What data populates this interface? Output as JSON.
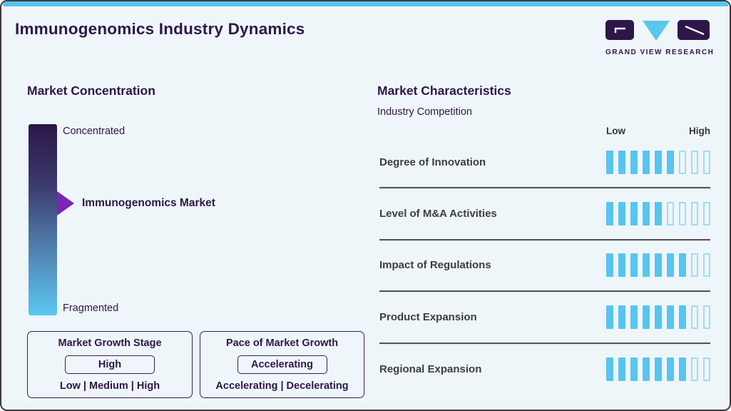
{
  "page_title": "Immunogenomics Industry Dynamics",
  "brand": {
    "name": "GRAND VIEW RESEARCH"
  },
  "colors": {
    "background": "#eff6fa",
    "accent_blue": "#57c5f0",
    "accent_light_blue": "#9edcf6",
    "dark_purple": "#2d1748",
    "arrow_purple": "#7c25b8",
    "gradient_top": "#2b1747",
    "gradient_bottom": "#5bc7f1"
  },
  "market_concentration": {
    "heading": "Market Concentration",
    "scale_top_label": "Concentrated",
    "scale_bottom_label": "Fragmented",
    "marker_label": "Immunogenomics Market",
    "marker_position_pct_from_top": 41.5,
    "growth_stage_box": {
      "title": "Market Growth Stage",
      "value": "High",
      "options": "Low | Medium | High"
    },
    "growth_pace_box": {
      "title": "Pace of Market Growth",
      "value": "Accelerating",
      "options": "Accelerating | Decelerating"
    }
  },
  "market_characteristics": {
    "heading": "Market Characteristics",
    "subheading": "Industry Competition",
    "scale_low_label": "Low",
    "scale_high_label": "High"
  },
  "chart_data": {
    "type": "bar",
    "title": "Market Characteristics",
    "subtitle": "Industry Competition",
    "categories": [
      "Degree of Innovation",
      "Level of M&A Activities",
      "Impact of Regulations",
      "Product Expansion",
      "Regional Expansion"
    ],
    "values": [
      6,
      5,
      7,
      7,
      7
    ],
    "value_range": [
      0,
      9
    ],
    "scale_min_label": "Low",
    "scale_max_label": "High",
    "legend": false,
    "orientation": "horizontal-segmented"
  }
}
